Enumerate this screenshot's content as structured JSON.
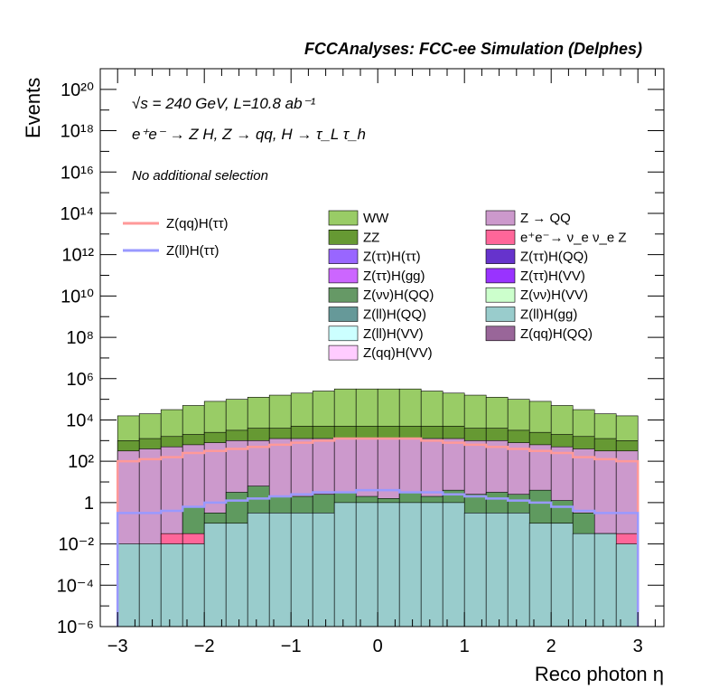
{
  "chart_data": {
    "type": "area",
    "title": "FCCAnalyses: FCC-ee Simulation (Delphes)",
    "info_lines": [
      "√s = 240 GeV, L=10.8 ab⁻¹",
      "e⁺e⁻ → Z H, Z → qq, H → τ_L τ_h"
    ],
    "selection": "No additional selection",
    "xlabel": "Reco photon η",
    "ylabel": "Events",
    "xlim": [
      -3.2,
      3.3
    ],
    "ylim_log10": [
      -6,
      21
    ],
    "y_scale": "log",
    "x_ticks": [
      "−3",
      "−2",
      "−1",
      "0",
      "1",
      "2",
      "3"
    ],
    "y_ticks": [
      "10⁻⁶",
      "10⁻⁴",
      "10⁻²",
      "1",
      "10²",
      "10⁴",
      "10⁶",
      "10⁸",
      "10¹⁰",
      "10¹²",
      "10¹⁴",
      "10¹⁶",
      "10¹⁸",
      "10²⁰"
    ],
    "bin_edges": [
      -3.0,
      -2.75,
      -2.5,
      -2.25,
      -2.0,
      -1.75,
      -1.5,
      -1.25,
      -1.0,
      -0.75,
      -0.5,
      -0.25,
      0.0,
      0.25,
      0.5,
      0.75,
      1.0,
      1.25,
      1.5,
      1.75,
      2.0,
      2.25,
      2.5,
      2.75,
      3.0
    ],
    "stack_layers": [
      {
        "name": "Z(ll)H(gg)",
        "color": "#99cccc",
        "top": [
          -2,
          -2,
          -2,
          -2,
          -1,
          -1,
          -0.5,
          -0.5,
          -0.5,
          -0.5,
          0,
          0,
          0,
          0,
          0,
          0,
          -0.5,
          -0.5,
          -0.5,
          -1,
          -1,
          -1.5,
          -1.5,
          -2
        ]
      },
      {
        "name": "Z(νν)H(QQ)",
        "color": "#5f9a5f",
        "top": [
          -3,
          -5,
          -3,
          -0.2,
          -0.5,
          0.5,
          0.8,
          0.3,
          0.3,
          0.4,
          0.5,
          0.3,
          0.2,
          0.5,
          0.3,
          0.6,
          0.4,
          0.5,
          0.4,
          0.6,
          0.1,
          -0.5,
          -1.5,
          -3
        ]
      },
      {
        "name": "e⁺e⁻→ ν_e ν_e Z",
        "color": "#ff6699",
        "top": [
          -3,
          -3,
          -1.5,
          -1.5,
          -1.5,
          -1.5,
          -2,
          -1,
          -1,
          -1,
          -2,
          -1,
          -1,
          -1.5,
          -2,
          -1.5,
          -1.5,
          -1,
          -1.5,
          -1.5,
          -1,
          -2,
          -1.5,
          -1.5
        ]
      },
      {
        "name": "WW",
        "color": "#99cc66",
        "top": [
          4.2,
          4.3,
          4.5,
          4.7,
          4.9,
          5.0,
          5.1,
          5.2,
          5.3,
          5.4,
          5.5,
          5.5,
          5.5,
          5.5,
          5.4,
          5.3,
          5.2,
          5.1,
          5.0,
          4.9,
          4.7,
          4.5,
          4.3,
          4.2
        ]
      },
      {
        "name": "ZZ",
        "color": "#669933",
        "top": [
          3.0,
          3.1,
          3.2,
          3.3,
          3.4,
          3.5,
          3.6,
          3.6,
          3.7,
          3.7,
          3.7,
          3.7,
          3.7,
          3.7,
          3.7,
          3.7,
          3.6,
          3.6,
          3.5,
          3.4,
          3.3,
          3.2,
          3.1,
          3.0
        ]
      },
      {
        "name": "Z → QQ",
        "color": "#cc99cc",
        "top": [
          2.5,
          2.6,
          2.7,
          2.8,
          2.9,
          3.0,
          3.0,
          3.1,
          3.1,
          3.1,
          3.1,
          3.1,
          3.1,
          3.1,
          3.1,
          3.1,
          3.0,
          3.0,
          2.9,
          2.8,
          2.7,
          2.6,
          2.5,
          2.5
        ]
      }
    ],
    "line_series": [
      {
        "name": "Z(qq)H(ττ)",
        "color": "#ff9999",
        "values_log10": [
          2.0,
          2.1,
          2.2,
          2.4,
          2.5,
          2.6,
          2.7,
          2.8,
          2.9,
          3.0,
          3.1,
          3.1,
          3.1,
          3.1,
          3.0,
          2.9,
          2.8,
          2.7,
          2.6,
          2.5,
          2.4,
          2.2,
          2.1,
          2.0
        ]
      },
      {
        "name": "Z(ll)H(ττ)",
        "color": "#9999ff",
        "values_log10": [
          -0.5,
          -0.5,
          -0.4,
          -0.2,
          0.0,
          0.1,
          0.2,
          0.3,
          0.4,
          0.5,
          0.5,
          0.6,
          0.6,
          0.5,
          0.5,
          0.4,
          0.3,
          0.2,
          0.1,
          0.0,
          -0.2,
          -0.4,
          -0.5,
          -0.5
        ]
      }
    ],
    "legend_lines": [
      {
        "label": "Z(qq)H(ττ)",
        "color": "#ff9999"
      },
      {
        "label": "Z(ll)H(ττ)",
        "color": "#9999ff"
      }
    ],
    "legend_fills": [
      {
        "label": "WW",
        "color": "#99cc66"
      },
      {
        "label": "Z → QQ",
        "color": "#cc99cc"
      },
      {
        "label": "ZZ",
        "color": "#669933"
      },
      {
        "label": "e⁺e⁻→ ν_e ν_e Z",
        "color": "#ff6699"
      },
      {
        "label": "Z(ττ)H(ττ)",
        "color": "#9966ff"
      },
      {
        "label": "Z(ττ)H(QQ)",
        "color": "#6633cc"
      },
      {
        "label": "Z(ττ)H(gg)",
        "color": "#cc66ff"
      },
      {
        "label": "Z(ττ)H(VV)",
        "color": "#9933ff"
      },
      {
        "label": "Z(νν)H(QQ)",
        "color": "#669966"
      },
      {
        "label": "Z(νν)H(VV)",
        "color": "#ccffcc"
      },
      {
        "label": "Z(ll)H(QQ)",
        "color": "#669999"
      },
      {
        "label": "Z(ll)H(gg)",
        "color": "#99cccc"
      },
      {
        "label": "Z(ll)H(VV)",
        "color": "#ccffff"
      },
      {
        "label": "Z(qq)H(QQ)",
        "color": "#996699"
      },
      {
        "label": "Z(qq)H(VV)",
        "color": "#ffccff"
      }
    ]
  }
}
